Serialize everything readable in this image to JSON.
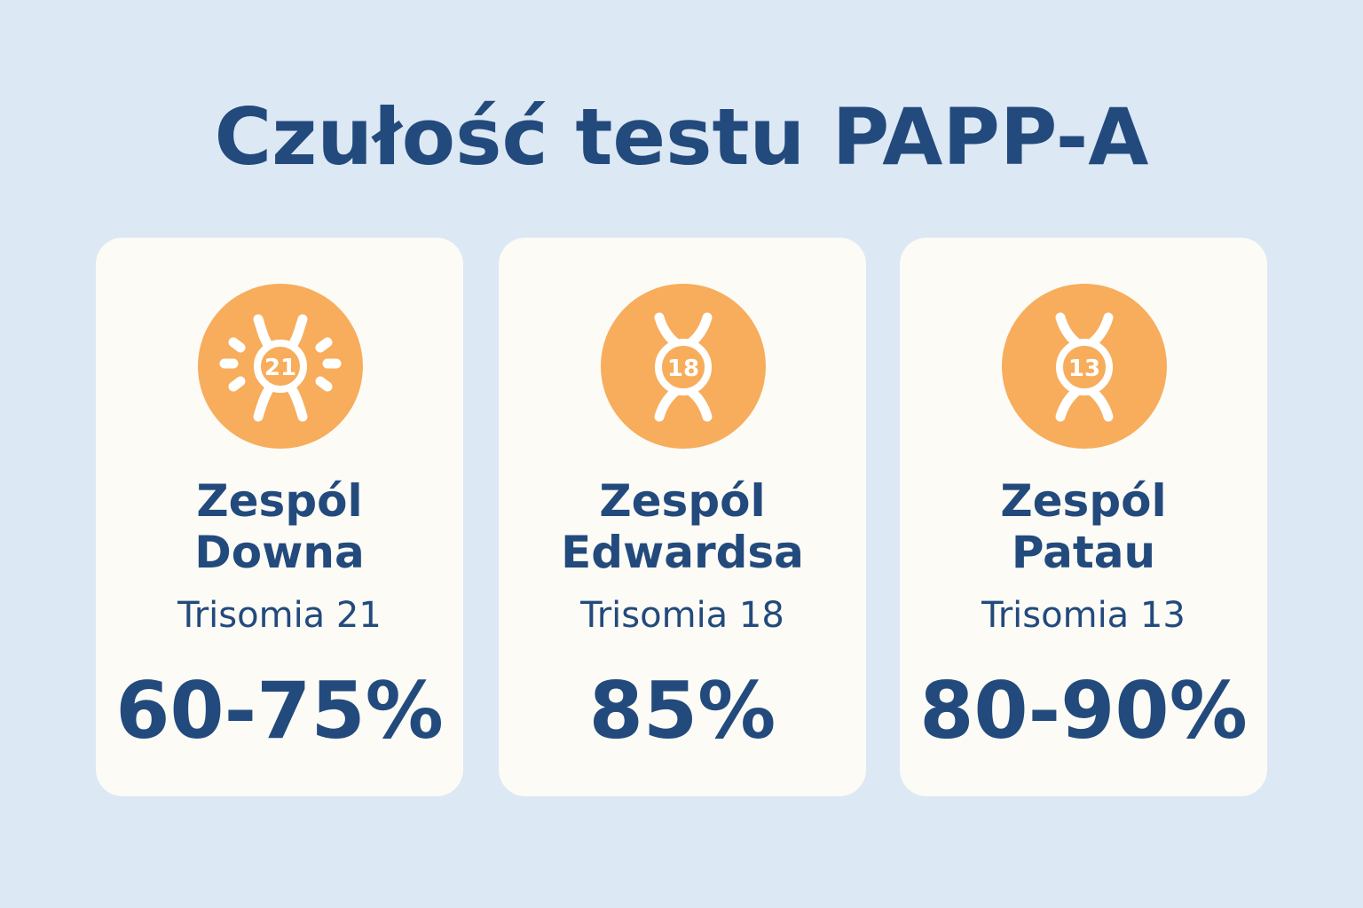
{
  "title": "Czułość testu PAPP-A",
  "colors": {
    "background": "#dce8f4",
    "card": "#fcfbf6",
    "text": "#234a7c",
    "icon_circle": "#f7ad5c",
    "icon_fg": "#ffffff"
  },
  "cards": [
    {
      "icon": "chromosome-21-icon",
      "icon_number": "21",
      "name_line1": "Zespól",
      "name_line2": "Downa",
      "subtitle": "Trisomia 21",
      "percent": "60-75%"
    },
    {
      "icon": "chromosome-18-icon",
      "icon_number": "18",
      "name_line1": "Zespól",
      "name_line2": "Edwardsa",
      "subtitle": "Trisomia 18",
      "percent": "85%"
    },
    {
      "icon": "chromosome-13-icon",
      "icon_number": "13",
      "name_line1": "Zespól",
      "name_line2": "Patau",
      "subtitle": "Trisomia 13",
      "percent": "80-90%"
    }
  ]
}
